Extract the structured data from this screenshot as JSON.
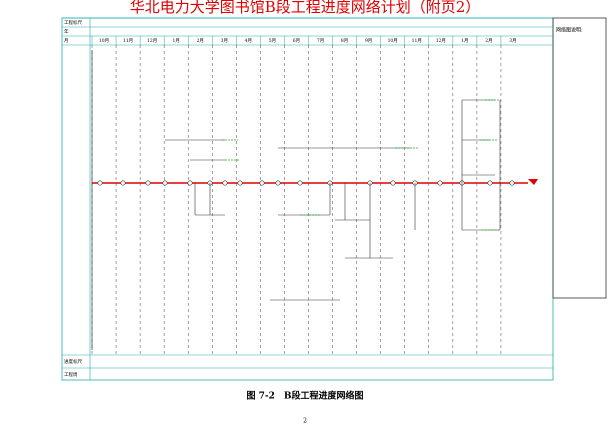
{
  "header": {
    "title": "华北电力大学图书馆B段工程进度网络计划（附页2）"
  },
  "table": {
    "row_labels": [
      "工程标尺",
      "年",
      "月"
    ],
    "bottom_labels": [
      "进度标尺",
      "工程周"
    ],
    "months": [
      "10月",
      "11月",
      "12月",
      "1月",
      "2月",
      "3月",
      "4月",
      "5月",
      "6月",
      "7月",
      "8月",
      "9月",
      "10月",
      "11月",
      "12月",
      "1月",
      "2月",
      "3月"
    ]
  },
  "notes": {
    "title": "网络图说明:"
  },
  "caption": "图 7-2　B段工程进度网络图",
  "page_number": "2"
}
